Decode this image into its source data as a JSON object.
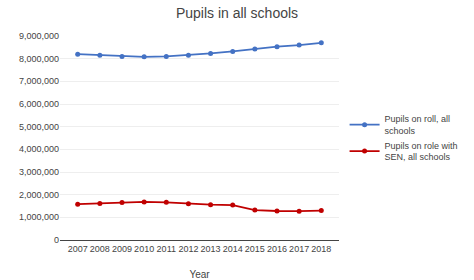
{
  "chart_data": {
    "type": "line",
    "title": "Pupils in all schools",
    "xlabel": "Year",
    "x": [
      2007,
      2008,
      2009,
      2010,
      2011,
      2012,
      2013,
      2014,
      2015,
      2016,
      2017,
      2018
    ],
    "series": [
      {
        "name": "Pupils on roll, all\nschools",
        "color": "#4472C4",
        "marker": "circle",
        "values": [
          8200000,
          8150000,
          8100000,
          8080000,
          8100000,
          8150000,
          8230000,
          8320000,
          8430000,
          8530000,
          8600000,
          8700000
        ]
      },
      {
        "name": "Pupils on role with\nSEN, all schools",
        "color": "#C00000",
        "marker": "circle",
        "values": [
          1580000,
          1610000,
          1650000,
          1680000,
          1660000,
          1600000,
          1560000,
          1540000,
          1320000,
          1280000,
          1270000,
          1300000
        ]
      }
    ],
    "xlim": [
      2006.2,
      2018.8
    ],
    "xticks": [
      2007,
      2008,
      2009,
      2010,
      2011,
      2012,
      2013,
      2014,
      2015,
      2016,
      2017,
      2018
    ],
    "ylim": [
      0,
      9000000
    ],
    "yticks": [
      0,
      {
        "value": 1000000,
        "label": "1,000,000"
      },
      {
        "value": 2000000,
        "label": "2,000,000"
      },
      {
        "value": 3000000,
        "label": "3,000,000"
      },
      {
        "value": 4000000,
        "label": "4,000,000"
      },
      {
        "value": 5000000,
        "label": "5,000,000"
      },
      {
        "value": 6000000,
        "label": "6,000,000"
      },
      {
        "value": 7000000,
        "label": "7,000,000"
      },
      {
        "value": 8000000,
        "label": "8,000,000"
      },
      {
        "value": 9000000,
        "label": "9,000,000"
      }
    ],
    "grid": true,
    "legend": "right"
  }
}
